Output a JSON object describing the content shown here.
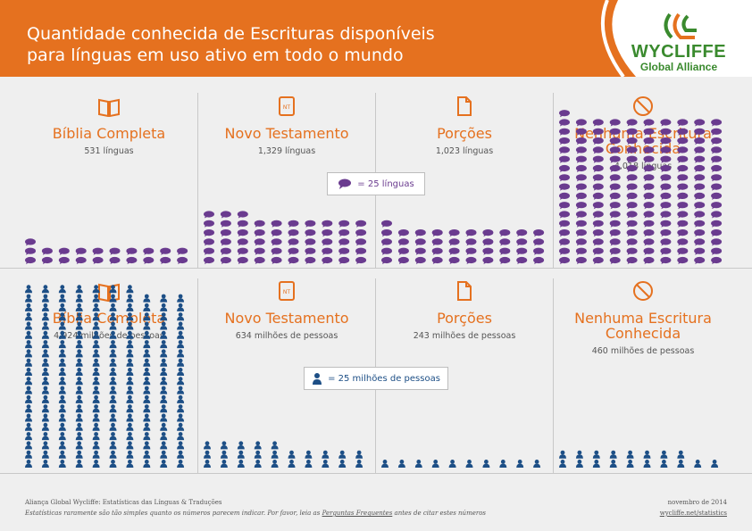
{
  "header": {
    "title_line1": "Quantidade conhecida de Escrituras disponíveis",
    "title_line2": "para línguas em uso ativo em todo o mundo",
    "logo_name": "WYCLIFFE",
    "logo_sub": "Global Alliance"
  },
  "colors": {
    "orange": "#e5711f",
    "purple": "#6a3b8f",
    "blue": "#1d4f86",
    "green": "#3a8a2e"
  },
  "languages": {
    "legend_label": "= 25 línguas",
    "columns": [
      {
        "title": "Bíblia Completa",
        "value_text": "531 línguas",
        "count": 531,
        "icon": "book-icon"
      },
      {
        "title": "Novo Testamento",
        "value_text": "1,329 línguas",
        "count": 1329,
        "icon": "new-testament-icon"
      },
      {
        "title": "Porções",
        "value_text": "1,023 línguas",
        "count": 1023,
        "icon": "document-icon"
      },
      {
        "title_line1": "Nenhuma Escritura",
        "title_line2": "Conhecida",
        "value_text": "4,018 línguas",
        "count": 4018,
        "icon": "no-symbol-icon"
      }
    ]
  },
  "people": {
    "legend_label": "= 25 milhões de pessoas",
    "columns": [
      {
        "title": "Bíblia Completa",
        "value_text": "4,924 milhões de pessoas",
        "count": 4924,
        "icon": "book-icon"
      },
      {
        "title": "Novo Testamento",
        "value_text": "634 milhões de pessoas",
        "count": 634,
        "icon": "new-testament-icon"
      },
      {
        "title": "Porções",
        "value_text": "243 milhões de pessoas",
        "count": 243,
        "icon": "document-icon"
      },
      {
        "title_line1": "Nenhuma Escritura",
        "title_line2": "Conhecida",
        "value_text": "460 milhões de pessoas",
        "count": 460,
        "icon": "no-symbol-icon"
      }
    ]
  },
  "unit_per_icon": 25,
  "nt_badge": "NT",
  "footer": {
    "source": "Aliança Global Wycliffe: Estatísticas das Línguas & Traduções",
    "note_pre": "Estatísticas raramente são tão simples quanto os números parecem indicar. Por favor, leia as ",
    "note_link": "Perguntas Frequentes",
    "note_post": " antes de citar estes números",
    "date": "novembro de 2014",
    "url": "wycliffe.net/statistics"
  }
}
